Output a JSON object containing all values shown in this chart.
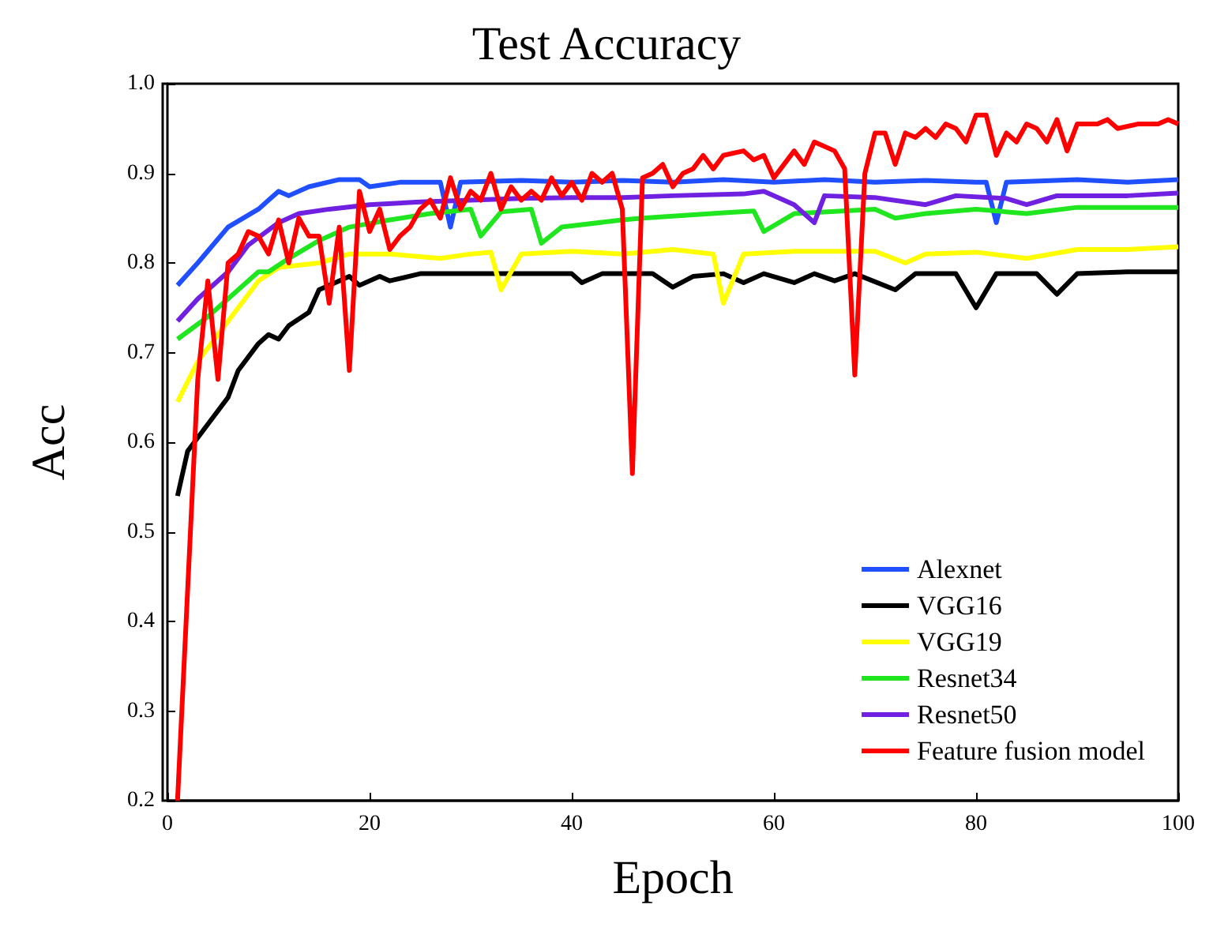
{
  "chart_data": {
    "type": "line",
    "title": "Test Accuracy",
    "xlabel": "Epoch",
    "ylabel": "Acc",
    "xlim": [
      0,
      100
    ],
    "xticks": [
      0,
      20,
      40,
      60,
      80,
      100
    ],
    "ylim": [
      0.2,
      1
    ],
    "yticks": [
      0.2,
      0.3,
      0.4,
      0.5,
      0.6,
      0.7,
      0.8,
      0.9,
      {
        "value": 1,
        "label": "1.0"
      }
    ],
    "grid": false,
    "legend": "bottom right",
    "marker": "none",
    "line_style": "solid",
    "series": [
      {
        "name": "Alexnet",
        "color": "#1f4fff",
        "x": [
          1,
          3,
          6,
          9,
          10,
          11,
          12,
          14,
          17,
          19,
          20,
          23,
          27,
          28,
          29,
          35,
          40,
          45,
          50,
          55,
          60,
          65,
          70,
          75,
          80,
          81,
          82,
          83,
          90,
          95,
          100
        ],
        "values": [
          0.775,
          0.8,
          0.84,
          0.86,
          0.87,
          0.88,
          0.875,
          0.885,
          0.893,
          0.893,
          0.885,
          0.89,
          0.89,
          0.84,
          0.89,
          0.892,
          0.89,
          0.892,
          0.89,
          0.893,
          0.89,
          0.893,
          0.89,
          0.892,
          0.89,
          0.89,
          0.845,
          0.89,
          0.893,
          0.89,
          0.893
        ]
      },
      {
        "name": "VGG16",
        "color": "#000000",
        "x": [
          1,
          2,
          4,
          6,
          7,
          9,
          10,
          11,
          12,
          14,
          15,
          17,
          18,
          19,
          21,
          22,
          25,
          30,
          35,
          40,
          41,
          43,
          48,
          50,
          52,
          55,
          57,
          59,
          62,
          64,
          66,
          68,
          72,
          74,
          78,
          80,
          82,
          86,
          88,
          90,
          95,
          100
        ],
        "values": [
          0.54,
          0.59,
          0.62,
          0.65,
          0.68,
          0.71,
          0.72,
          0.715,
          0.73,
          0.745,
          0.77,
          0.78,
          0.785,
          0.775,
          0.785,
          0.78,
          0.788,
          0.788,
          0.788,
          0.788,
          0.778,
          0.788,
          0.788,
          0.773,
          0.785,
          0.788,
          0.778,
          0.788,
          0.778,
          0.788,
          0.78,
          0.788,
          0.77,
          0.788,
          0.788,
          0.75,
          0.788,
          0.788,
          0.765,
          0.788,
          0.79,
          0.79
        ]
      },
      {
        "name": "VGG19",
        "color": "#ffff00",
        "x": [
          1,
          3,
          5,
          7,
          9,
          11,
          15,
          18,
          22,
          27,
          30,
          32,
          33,
          35,
          40,
          45,
          50,
          54,
          55,
          57,
          62,
          70,
          73,
          75,
          80,
          85,
          90,
          95,
          100
        ],
        "values": [
          0.645,
          0.69,
          0.72,
          0.75,
          0.78,
          0.795,
          0.8,
          0.81,
          0.81,
          0.805,
          0.81,
          0.812,
          0.77,
          0.81,
          0.813,
          0.81,
          0.815,
          0.81,
          0.755,
          0.81,
          0.813,
          0.813,
          0.8,
          0.81,
          0.812,
          0.805,
          0.815,
          0.815,
          0.818
        ]
      },
      {
        "name": "Resnet34",
        "color": "#1fe61f",
        "x": [
          1,
          4,
          7,
          9,
          10,
          12,
          15,
          18,
          22,
          26,
          30,
          31,
          33,
          36,
          37,
          39,
          45,
          47,
          55,
          58,
          59,
          62,
          70,
          72,
          75,
          80,
          85,
          90,
          100
        ],
        "values": [
          0.715,
          0.74,
          0.77,
          0.79,
          0.79,
          0.805,
          0.825,
          0.84,
          0.848,
          0.855,
          0.86,
          0.83,
          0.857,
          0.86,
          0.822,
          0.84,
          0.848,
          0.85,
          0.856,
          0.858,
          0.835,
          0.855,
          0.86,
          0.85,
          0.855,
          0.86,
          0.855,
          0.862,
          0.862
        ]
      },
      {
        "name": "Resnet50",
        "color": "#7020e0",
        "x": [
          1,
          3,
          6,
          8,
          11,
          13,
          16,
          20,
          25,
          30,
          35,
          40,
          45,
          50,
          57,
          59,
          62,
          64,
          65,
          70,
          75,
          78,
          83,
          85,
          88,
          95,
          100
        ],
        "values": [
          0.735,
          0.76,
          0.79,
          0.82,
          0.845,
          0.855,
          0.86,
          0.865,
          0.868,
          0.87,
          0.872,
          0.873,
          0.873,
          0.875,
          0.877,
          0.88,
          0.865,
          0.845,
          0.875,
          0.873,
          0.865,
          0.875,
          0.872,
          0.865,
          0.875,
          0.875,
          0.878
        ]
      },
      {
        "name": "Feature fusion model",
        "color": "#ff0000",
        "x": [
          1,
          3,
          4,
          5,
          6,
          7,
          8,
          9,
          10,
          11,
          12,
          13,
          14,
          15,
          16,
          17,
          18,
          19,
          20,
          21,
          22,
          23,
          24,
          25,
          26,
          27,
          28,
          29,
          30,
          31,
          32,
          33,
          34,
          35,
          36,
          37,
          38,
          39,
          40,
          41,
          42,
          43,
          44,
          45,
          46,
          47,
          48,
          49,
          50,
          51,
          52,
          53,
          54,
          55,
          57,
          58,
          59,
          60,
          61,
          62,
          63,
          64,
          66,
          67,
          68,
          69,
          70,
          71,
          72,
          73,
          74,
          75,
          76,
          77,
          78,
          79,
          80,
          81,
          82,
          83,
          84,
          85,
          86,
          87,
          88,
          89,
          90,
          92,
          93,
          94,
          96,
          98,
          99,
          100
        ],
        "values": [
          0.2,
          0.67,
          0.78,
          0.67,
          0.8,
          0.81,
          0.835,
          0.83,
          0.81,
          0.848,
          0.8,
          0.85,
          0.83,
          0.83,
          0.755,
          0.84,
          0.68,
          0.88,
          0.835,
          0.86,
          0.815,
          0.83,
          0.84,
          0.86,
          0.87,
          0.85,
          0.895,
          0.86,
          0.88,
          0.87,
          0.9,
          0.86,
          0.885,
          0.87,
          0.88,
          0.87,
          0.895,
          0.875,
          0.89,
          0.87,
          0.9,
          0.89,
          0.9,
          0.86,
          0.565,
          0.895,
          0.9,
          0.91,
          0.885,
          0.9,
          0.905,
          0.92,
          0.905,
          0.92,
          0.925,
          0.915,
          0.92,
          0.895,
          0.91,
          0.925,
          0.91,
          0.935,
          0.925,
          0.905,
          0.675,
          0.9,
          0.945,
          0.945,
          0.91,
          0.945,
          0.94,
          0.95,
          0.94,
          0.955,
          0.95,
          0.935,
          0.965,
          0.965,
          0.92,
          0.945,
          0.935,
          0.955,
          0.95,
          0.935,
          0.96,
          0.925,
          0.955,
          0.955,
          0.96,
          0.95,
          0.955,
          0.955,
          0.96,
          0.955
        ]
      }
    ]
  }
}
